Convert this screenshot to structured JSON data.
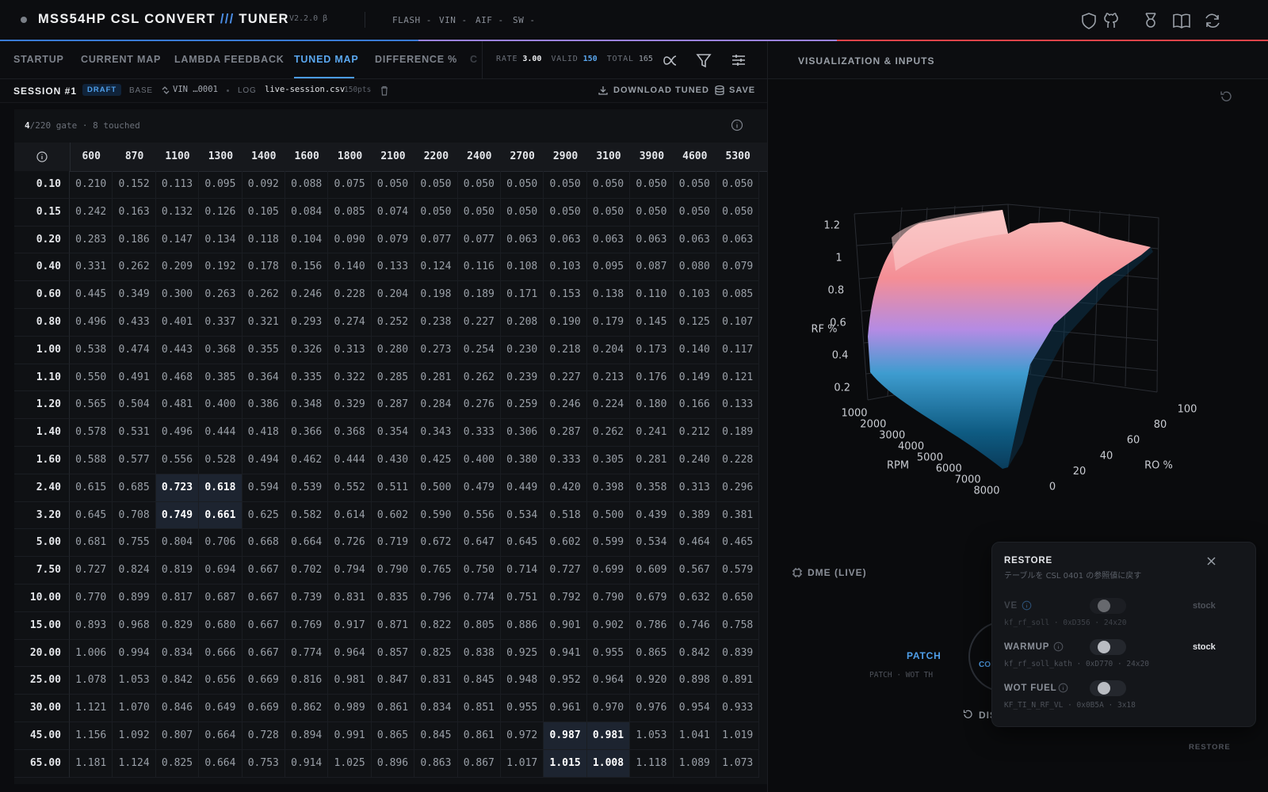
{
  "header": {
    "title": "MSS54HP CSL CONVERT",
    "separator": "///",
    "title_suffix": "TUNER",
    "version": "V2.2.0 β",
    "menu": [
      "FLASH -",
      "VIN -",
      "AIF -",
      "SW -"
    ]
  },
  "tabs": [
    "STARTUP",
    "CURRENT MAP",
    "LAMBDA FEEDBACK",
    "TUNED MAP",
    "DIFFERENCE %",
    "C"
  ],
  "stats": {
    "rate_label": "RATE",
    "rate": "3.00",
    "valid_label": "VALID",
    "valid": 150,
    "total_label": "TOTAL",
    "total": 165
  },
  "side_title": "VISUALIZATION & INPUTS",
  "session": {
    "title": "SESSION #1",
    "status": "DRAFT",
    "base_label": "BASE",
    "vin": "VIN …0001",
    "log_label": "LOG",
    "log_file": "live-session.csv",
    "log_points": "150pts",
    "download": "DOWNLOAD TUNED",
    "save": "SAVE"
  },
  "table": {
    "gate_count": 4,
    "gate_caption": "/220 gate · 8 touched",
    "columns": [
      600,
      870,
      1100,
      1300,
      1400,
      1600,
      1800,
      2100,
      2200,
      2400,
      2700,
      2900,
      3100,
      3900,
      4600,
      5300
    ],
    "rows": [
      {
        "label": "0.10",
        "cells": [
          "0.210",
          "0.152",
          "0.113",
          "0.095",
          "0.092",
          "0.088",
          "0.075",
          "0.050",
          "0.050",
          "0.050",
          "0.050",
          "0.050",
          "0.050",
          "0.050",
          "0.050",
          "0.050"
        ]
      },
      {
        "label": "0.15",
        "cells": [
          "0.242",
          "0.163",
          "0.132",
          "0.126",
          "0.105",
          "0.084",
          "0.085",
          "0.074",
          "0.050",
          "0.050",
          "0.050",
          "0.050",
          "0.050",
          "0.050",
          "0.050",
          "0.050"
        ]
      },
      {
        "label": "0.20",
        "cells": [
          "0.283",
          "0.186",
          "0.147",
          "0.134",
          "0.118",
          "0.104",
          "0.090",
          "0.079",
          "0.077",
          "0.077",
          "0.063",
          "0.063",
          "0.063",
          "0.063",
          "0.063",
          "0.063"
        ]
      },
      {
        "label": "0.40",
        "cells": [
          "0.331",
          "0.262",
          "0.209",
          "0.192",
          "0.178",
          "0.156",
          "0.140",
          "0.133",
          "0.124",
          "0.116",
          "0.108",
          "0.103",
          "0.095",
          "0.087",
          "0.080",
          "0.079"
        ]
      },
      {
        "label": "0.60",
        "cells": [
          "0.445",
          "0.349",
          "0.300",
          "0.263",
          "0.262",
          "0.246",
          "0.228",
          "0.204",
          "0.198",
          "0.189",
          "0.171",
          "0.153",
          "0.138",
          "0.110",
          "0.103",
          "0.085"
        ]
      },
      {
        "label": "0.80",
        "cells": [
          "0.496",
          "0.433",
          "0.401",
          "0.337",
          "0.321",
          "0.293",
          "0.274",
          "0.252",
          "0.238",
          "0.227",
          "0.208",
          "0.190",
          "0.179",
          "0.145",
          "0.125",
          "0.107"
        ]
      },
      {
        "label": "1.00",
        "cells": [
          "0.538",
          "0.474",
          "0.443",
          "0.368",
          "0.355",
          "0.326",
          "0.313",
          "0.280",
          "0.273",
          "0.254",
          "0.230",
          "0.218",
          "0.204",
          "0.173",
          "0.140",
          "0.117"
        ]
      },
      {
        "label": "1.10",
        "cells": [
          "0.550",
          "0.491",
          "0.468",
          "0.385",
          "0.364",
          "0.335",
          "0.322",
          "0.285",
          "0.281",
          "0.262",
          "0.239",
          "0.227",
          "0.213",
          "0.176",
          "0.149",
          "0.121"
        ]
      },
      {
        "label": "1.20",
        "cells": [
          "0.565",
          "0.504",
          "0.481",
          "0.400",
          "0.386",
          "0.348",
          "0.329",
          "0.287",
          "0.284",
          "0.276",
          "0.259",
          "0.246",
          "0.224",
          "0.180",
          "0.166",
          "0.133"
        ]
      },
      {
        "label": "1.40",
        "cells": [
          "0.578",
          "0.531",
          "0.496",
          "0.444",
          "0.418",
          "0.366",
          "0.368",
          "0.354",
          "0.343",
          "0.333",
          "0.306",
          "0.287",
          "0.262",
          "0.241",
          "0.212",
          "0.189"
        ]
      },
      {
        "label": "1.60",
        "cells": [
          "0.588",
          "0.577",
          "0.556",
          "0.528",
          "0.494",
          "0.462",
          "0.444",
          "0.430",
          "0.425",
          "0.400",
          "0.380",
          "0.333",
          "0.305",
          "0.281",
          "0.240",
          "0.228"
        ]
      },
      {
        "label": "2.40",
        "cells": [
          "0.615",
          "0.685",
          "0.723",
          "0.618",
          "0.594",
          "0.539",
          "0.552",
          "0.511",
          "0.500",
          "0.479",
          "0.449",
          "0.420",
          "0.398",
          "0.358",
          "0.313",
          "0.296"
        ]
      },
      {
        "label": "3.20",
        "cells": [
          "0.645",
          "0.708",
          "0.749",
          "0.661",
          "0.625",
          "0.582",
          "0.614",
          "0.602",
          "0.590",
          "0.556",
          "0.534",
          "0.518",
          "0.500",
          "0.439",
          "0.389",
          "0.381"
        ]
      },
      {
        "label": "5.00",
        "cells": [
          "0.681",
          "0.755",
          "0.804",
          "0.706",
          "0.668",
          "0.664",
          "0.726",
          "0.719",
          "0.672",
          "0.647",
          "0.645",
          "0.602",
          "0.599",
          "0.534",
          "0.464",
          "0.465"
        ]
      },
      {
        "label": "7.50",
        "cells": [
          "0.727",
          "0.824",
          "0.819",
          "0.694",
          "0.667",
          "0.702",
          "0.794",
          "0.790",
          "0.765",
          "0.750",
          "0.714",
          "0.727",
          "0.699",
          "0.609",
          "0.567",
          "0.579"
        ]
      },
      {
        "label": "10.00",
        "cells": [
          "0.770",
          "0.899",
          "0.817",
          "0.687",
          "0.667",
          "0.739",
          "0.831",
          "0.835",
          "0.796",
          "0.774",
          "0.751",
          "0.792",
          "0.790",
          "0.679",
          "0.632",
          "0.650"
        ]
      },
      {
        "label": "15.00",
        "cells": [
          "0.893",
          "0.968",
          "0.829",
          "0.680",
          "0.667",
          "0.769",
          "0.917",
          "0.871",
          "0.822",
          "0.805",
          "0.886",
          "0.901",
          "0.902",
          "0.786",
          "0.746",
          "0.758"
        ]
      },
      {
        "label": "20.00",
        "cells": [
          "1.006",
          "0.994",
          "0.834",
          "0.666",
          "0.667",
          "0.774",
          "0.964",
          "0.857",
          "0.825",
          "0.838",
          "0.925",
          "0.941",
          "0.955",
          "0.865",
          "0.842",
          "0.839"
        ]
      },
      {
        "label": "25.00",
        "cells": [
          "1.078",
          "1.053",
          "0.842",
          "0.656",
          "0.669",
          "0.816",
          "0.981",
          "0.847",
          "0.831",
          "0.845",
          "0.948",
          "0.952",
          "0.964",
          "0.920",
          "0.898",
          "0.891"
        ]
      },
      {
        "label": "30.00",
        "cells": [
          "1.121",
          "1.070",
          "0.846",
          "0.649",
          "0.669",
          "0.862",
          "0.989",
          "0.861",
          "0.834",
          "0.851",
          "0.955",
          "0.961",
          "0.970",
          "0.976",
          "0.954",
          "0.933"
        ]
      },
      {
        "label": "45.00",
        "cells": [
          "1.156",
          "1.092",
          "0.807",
          "0.664",
          "0.728",
          "0.894",
          "0.991",
          "0.865",
          "0.845",
          "0.861",
          "0.972",
          "0.987",
          "0.981",
          "1.053",
          "1.041",
          "1.019"
        ]
      },
      {
        "label": "65.00",
        "cells": [
          "1.181",
          "1.124",
          "0.825",
          "0.664",
          "0.753",
          "0.914",
          "1.025",
          "0.896",
          "0.863",
          "0.867",
          "1.017",
          "1.015",
          "1.008",
          "1.118",
          "1.089",
          "1.073"
        ]
      }
    ]
  },
  "surface_plot": {
    "z_label": "RF %",
    "z_ticks": [
      0.2,
      0.4,
      0.6,
      0.8,
      1,
      1.2
    ],
    "x_label": "RPM",
    "x_ticks": [
      1000,
      2000,
      3000,
      4000,
      5000,
      6000,
      7000,
      8000
    ],
    "y_label": "RO %",
    "y_ticks": [
      0,
      20,
      40,
      60,
      80,
      100
    ]
  },
  "inputs": {
    "dme": "DME (LIVE)",
    "patch": "PATCH",
    "patch_caption": "PATCH · WOT TH",
    "dial": "CO",
    "discard": "DIS"
  },
  "restore_panel": {
    "title": "RESTORE",
    "subtitle": "テーブルを CSL 0401 の参照値に戻す",
    "items": [
      {
        "label": "VE",
        "detail": "kf_rf_soll · 0xD356 · 24x20",
        "state": "stock"
      },
      {
        "label": "WARMUP",
        "detail": "kf_rf_soll_kath · 0xD770 · 24x20",
        "state": "stock"
      },
      {
        "label": "WOT FUEL",
        "detail": "KF_TI_N_RF_VL · 0x0B5A · 3x18"
      }
    ],
    "action": "RESTORE"
  }
}
